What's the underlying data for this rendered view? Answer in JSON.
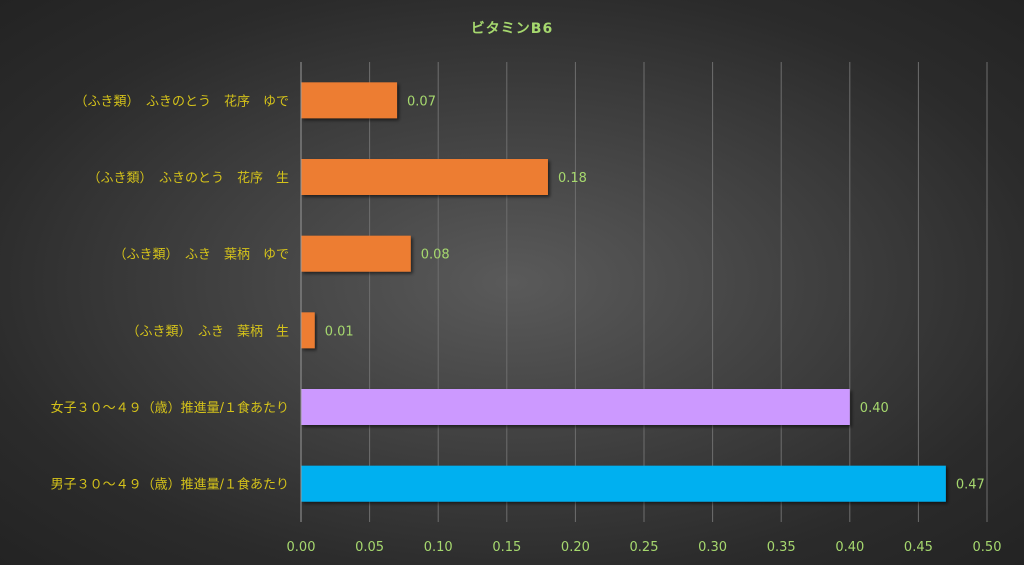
{
  "chart_data": {
    "type": "bar",
    "orientation": "horizontal",
    "title": "ビタミンB6",
    "xlabel": "",
    "ylabel": "",
    "xlim": [
      0,
      0.5
    ],
    "ticks": [
      "0.00",
      "0.05",
      "0.10",
      "0.15",
      "0.20",
      "0.25",
      "0.30",
      "0.35",
      "0.40",
      "0.45",
      "0.50"
    ],
    "grid": true,
    "categories": [
      "（ふき類）　ふきのとう　花序　ゆで",
      "（ふき類）　ふきのとう　花序　生",
      "（ふき類）　ふき　葉柄　ゆで",
      "（ふき類）　ふき　葉柄　生",
      "女子３０～４９（歳）推進量/１食あたり",
      "男子３０～４９（歳）推進量/１食あたり"
    ],
    "values": [
      0.07,
      0.18,
      0.08,
      0.01,
      0.4,
      0.47
    ],
    "value_labels": [
      "0.07",
      "0.18",
      "0.08",
      "0.01",
      "0.40",
      "0.47"
    ],
    "colors": [
      "#ed7d31",
      "#ed7d31",
      "#ed7d31",
      "#ed7d31",
      "#cc99ff",
      "#00b0f0"
    ],
    "label_color": "#d4c21a",
    "value_label_color": "#a6d86e",
    "tick_color": "#a6d86e"
  }
}
